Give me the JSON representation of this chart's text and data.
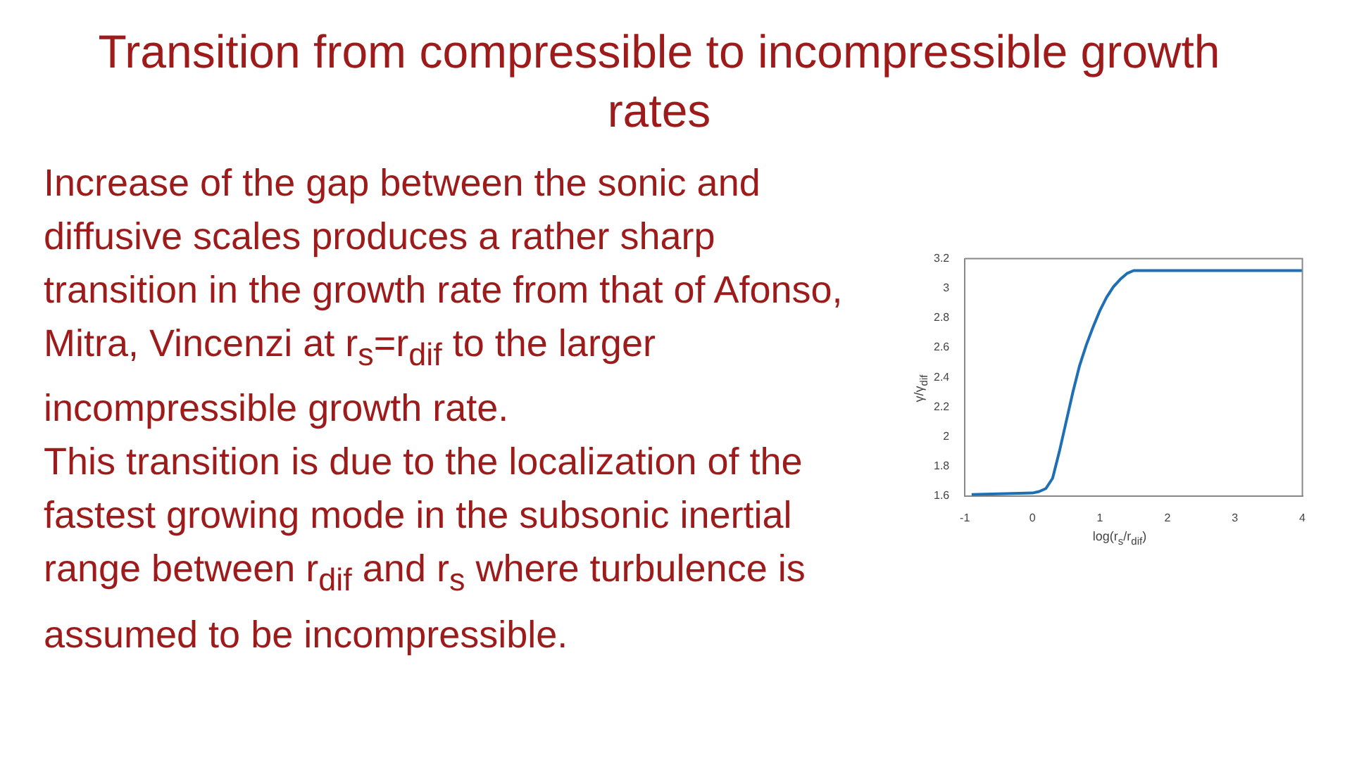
{
  "chart_data": {
    "type": "line",
    "title": "Transition from compressible to incompressible growth rates",
    "annotations": [
      "Increase of the gap between the sonic and diffusive scales produces a rather sharp transition in the growth rate from that of Afonso, Mitra, Vincenzi at r$_{s}$=r$_{dif}$ to the larger incompressible growth rate.",
      "This transition is due to the localization of the fastest growing mode in the subsonic inertial range between r$_{dif}$  and r$_{s}$ where turbulence is assumed to be incompressible."
    ],
    "xlabel": "log(r$_{s}$/r$_{dif}$)",
    "ylabel": "γ/γ$_{dif}$",
    "series": [
      {
        "color": "#1f6fb4",
        "x": [
          -0.9,
          0,
          0.1,
          0.2,
          0.3,
          0.4,
          0.5,
          0.6,
          0.7,
          0.8,
          0.9,
          1.0,
          1.1,
          1.2,
          1.3,
          1.4,
          1.5,
          4
        ],
        "values": [
          1.61,
          1.62,
          1.63,
          1.65,
          1.72,
          1.9,
          2.1,
          2.3,
          2.48,
          2.62,
          2.74,
          2.85,
          2.94,
          3.01,
          3.06,
          3.1,
          3.12,
          3.12
        ]
      }
    ],
    "xlim": [
      -1,
      4
    ],
    "xticks": [
      -1,
      0,
      1,
      2,
      3,
      4
    ],
    "ylim": [
      1.6,
      3.2
    ],
    "yticks": [
      1.6,
      1.8,
      2,
      2.2,
      2.4,
      2.6,
      2.8,
      3,
      3.2
    ],
    "grid": false,
    "legend": false,
    "marker": "none",
    "line_style": "solid"
  }
}
